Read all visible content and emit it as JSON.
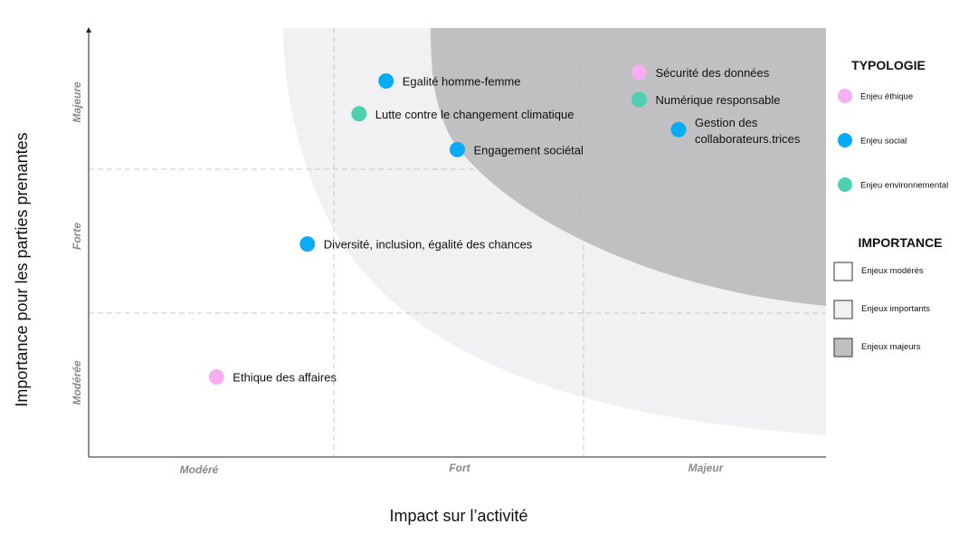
{
  "chart_data": {
    "type": "scatter",
    "title": "",
    "xlabel": "Impact sur l’activité",
    "ylabel": "Importance pour les parties prenantes",
    "xlim": [
      0,
      3
    ],
    "ylim": [
      0,
      3
    ],
    "x_ticks": [
      "Modéré",
      "Fort",
      "Majeur"
    ],
    "y_ticks": [
      "Modérée",
      "Forte",
      "Majeure"
    ],
    "grid": true,
    "legend_position": "right",
    "points": [
      {
        "label": "Egalité homme-femme",
        "x": 1.21,
        "y": 2.63,
        "category": "social"
      },
      {
        "label": "Lutte contre le changement climatique",
        "x": 1.1,
        "y": 2.4,
        "category": "environnemental"
      },
      {
        "label": "Engagement sociétal",
        "x": 1.5,
        "y": 2.15,
        "category": "social"
      },
      {
        "label": "Sécurité des données",
        "x": 2.24,
        "y": 2.69,
        "category": "ethique"
      },
      {
        "label": "Numérique responsable",
        "x": 2.24,
        "y": 2.5,
        "category": "environnemental"
      },
      {
        "label": "Gestion des\ncollaborateurs.trices",
        "x": 2.4,
        "y": 2.29,
        "category": "social"
      },
      {
        "label": "Diversité, inclusion, égalité des chances",
        "x": 0.89,
        "y": 1.49,
        "category": "social"
      },
      {
        "label": "Ethique des affaires",
        "x": 0.52,
        "y": 0.56,
        "category": "ethique"
      }
    ],
    "legend": {
      "typologie_title": "TYPOLOGIE",
      "typologie": [
        {
          "key": "ethique",
          "label": "Enjeu éthique",
          "color": "#f7aef0"
        },
        {
          "key": "social",
          "label": "Enjeu social",
          "color": "#08acf5"
        },
        {
          "key": "environnemental",
          "label": "Enjeu environnemental",
          "color": "#4fcfb1"
        }
      ],
      "importance_title": "IMPORTANCE",
      "importance": [
        {
          "label": "Enjeux modérés",
          "color": "#ffffff"
        },
        {
          "label": "Enjeux importants",
          "color": "#f1f0f3"
        },
        {
          "label": "Enjeux majeurs",
          "color": "#c0bfc2"
        }
      ]
    }
  }
}
